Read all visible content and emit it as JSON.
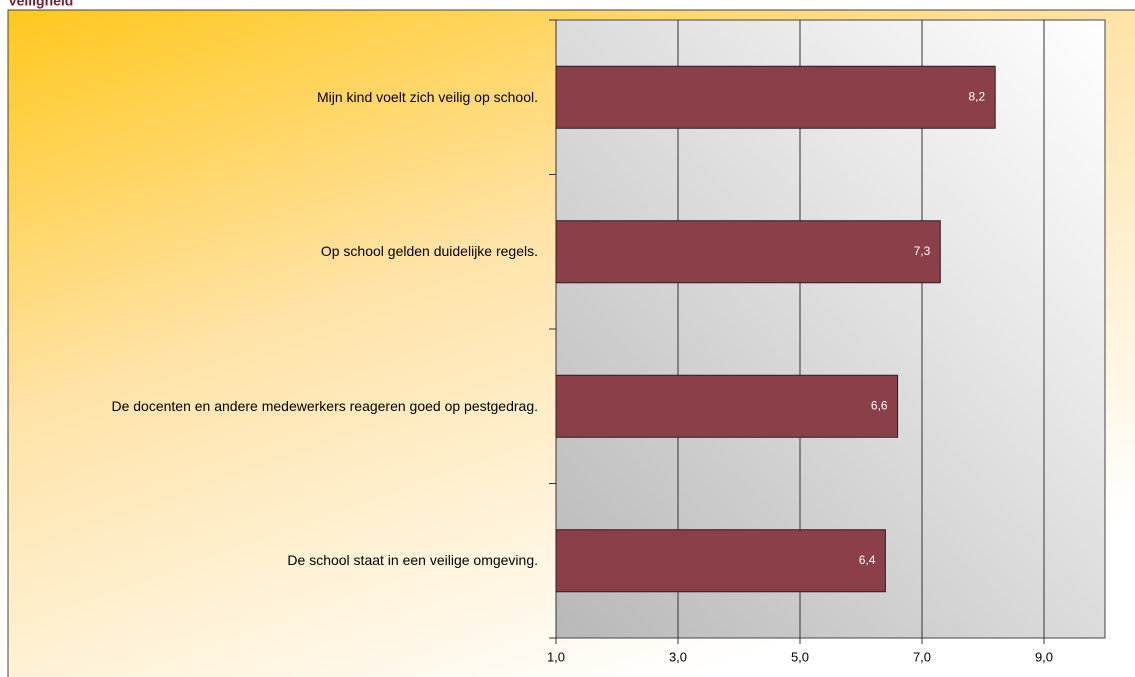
{
  "chart_data": {
    "type": "barh",
    "title": "Veiligheid",
    "categories": [
      "Mijn kind voelt zich veilig op school.",
      "Op school gelden duidelijke regels.",
      "De docenten en andere medewerkers reageren goed op pestgedrag.",
      "De school staat in een veilige omgeving."
    ],
    "values": [
      8.2,
      7.3,
      6.6,
      6.4
    ],
    "value_labels": [
      "8,2",
      "7,3",
      "6,6",
      "6,4"
    ],
    "color": "#8b3f48",
    "xlim": [
      1,
      10
    ],
    "xticks": [
      {
        "value": 1,
        "label": "1,0"
      },
      {
        "value": 3,
        "label": "3,0"
      },
      {
        "value": 5,
        "label": "5,0"
      },
      {
        "value": 7,
        "label": "7,0"
      },
      {
        "value": 9,
        "label": "9,0"
      }
    ],
    "grid": true
  }
}
